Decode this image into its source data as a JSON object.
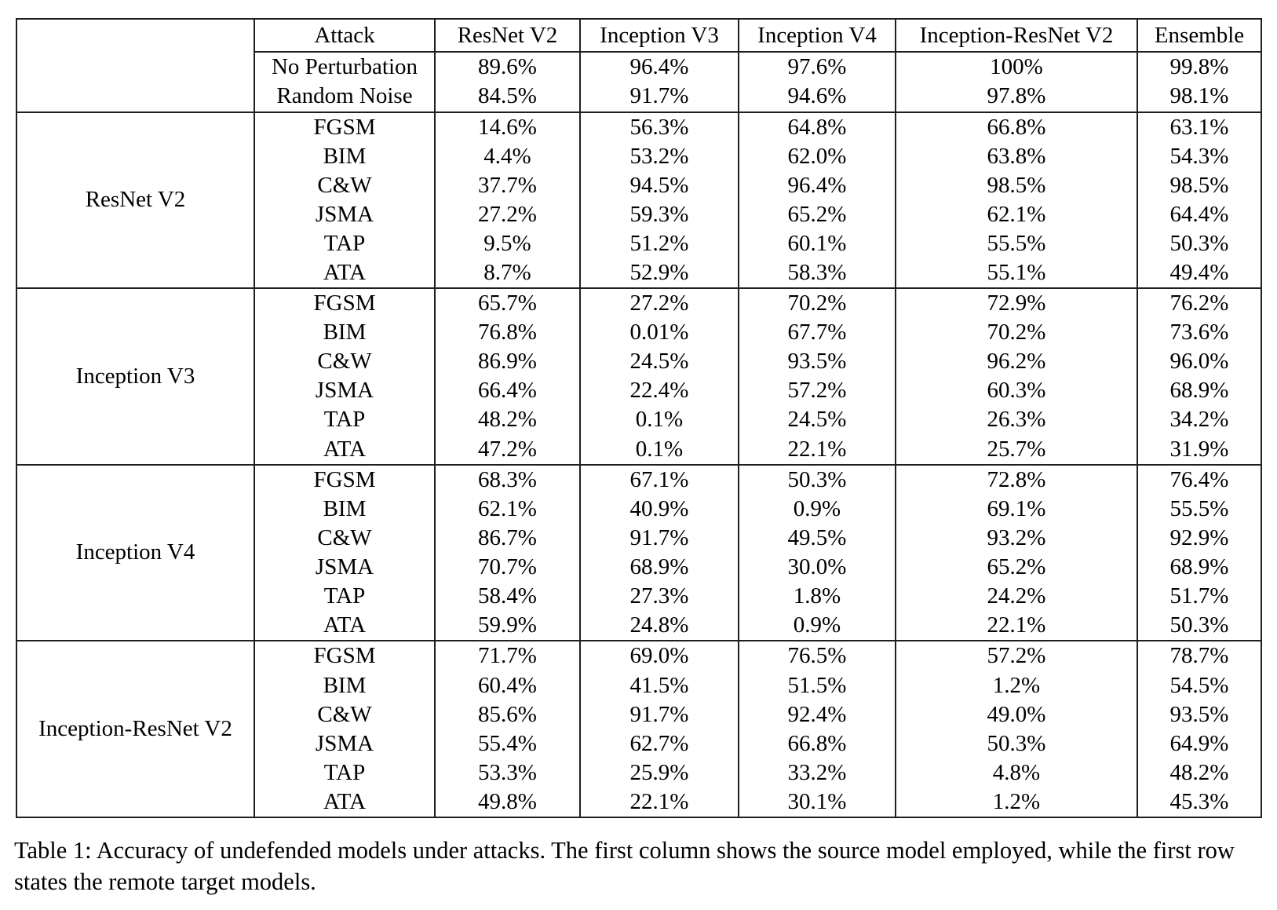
{
  "table": {
    "corner_label": "",
    "attack_col_header": "Attack",
    "target_headers": [
      "ResNet V2",
      "Inception V3",
      "Inception V4",
      "Inception-ResNet V2",
      "Ensemble"
    ],
    "baseline_rows": [
      {
        "label": "No Perturbation",
        "cells": [
          {
            "t": "89.6%",
            "b": false
          },
          {
            "t": "96.4%",
            "b": false
          },
          {
            "t": "97.6%",
            "b": false
          },
          {
            "t": "100%",
            "b": false
          },
          {
            "t": "99.8%",
            "b": false
          }
        ]
      },
      {
        "label": "Random Noise",
        "cells": [
          {
            "t": "84.5%",
            "b": false
          },
          {
            "t": "91.7%",
            "b": false
          },
          {
            "t": "94.6%",
            "b": false
          },
          {
            "t": "97.8%",
            "b": false
          },
          {
            "t": "98.1%",
            "b": false
          }
        ]
      }
    ],
    "sections": [
      {
        "source": "ResNet V2",
        "rows": [
          {
            "attack": "FGSM",
            "cells": [
              {
                "t": "14.6%",
                "b": false
              },
              {
                "t": "56.3%",
                "b": false
              },
              {
                "t": "64.8%",
                "b": false
              },
              {
                "t": "66.8%",
                "b": false
              },
              {
                "t": "63.1%",
                "b": false
              }
            ]
          },
          {
            "attack": "BIM",
            "cells": [
              {
                "t": "4.4%",
                "b": true
              },
              {
                "t": "53.2%",
                "b": false
              },
              {
                "t": "62.0%",
                "b": false
              },
              {
                "t": "63.8%",
                "b": false
              },
              {
                "t": "54.3%",
                "b": false
              }
            ]
          },
          {
            "attack": "C&W",
            "cells": [
              {
                "t": "37.7%",
                "b": false
              },
              {
                "t": "94.5%",
                "b": false
              },
              {
                "t": "96.4%",
                "b": false
              },
              {
                "t": "98.5%",
                "b": false
              },
              {
                "t": "98.5%",
                "b": false
              }
            ]
          },
          {
            "attack": "JSMA",
            "cells": [
              {
                "t": "27.2%",
                "b": false
              },
              {
                "t": "59.3%",
                "b": false
              },
              {
                "t": "65.2%",
                "b": false
              },
              {
                "t": "62.1%",
                "b": false
              },
              {
                "t": "64.4%",
                "b": false
              }
            ]
          },
          {
            "attack": "TAP",
            "cells": [
              {
                "t": "9.5%",
                "b": false
              },
              {
                "t": "51.2%",
                "b": true
              },
              {
                "t": "60.1%",
                "b": false
              },
              {
                "t": "55.5%",
                "b": false
              },
              {
                "t": "50.3%",
                "b": false
              }
            ]
          },
          {
            "attack": "ATA",
            "cells": [
              {
                "t": "8.7%",
                "b": false
              },
              {
                "t": "52.9%",
                "b": false
              },
              {
                "t": "58.3%",
                "b": true
              },
              {
                "t": "55.1%",
                "b": true
              },
              {
                "t": "49.4%",
                "b": true
              }
            ]
          }
        ]
      },
      {
        "source": "Inception V3",
        "rows": [
          {
            "attack": "FGSM",
            "cells": [
              {
                "t": "65.7%",
                "b": false
              },
              {
                "t": "27.2%",
                "b": false
              },
              {
                "t": "70.2%",
                "b": false
              },
              {
                "t": "72.9%",
                "b": false
              },
              {
                "t": "76.2%",
                "b": false
              }
            ]
          },
          {
            "attack": "BIM",
            "cells": [
              {
                "t": "76.8%",
                "b": false
              },
              {
                "t": "0.01%",
                "b": true
              },
              {
                "t": "67.7%",
                "b": false
              },
              {
                "t": "70.2%",
                "b": false
              },
              {
                "t": "73.6%",
                "b": false
              }
            ]
          },
          {
            "attack": "C&W",
            "cells": [
              {
                "t": "86.9%",
                "b": false
              },
              {
                "t": "24.5%",
                "b": false
              },
              {
                "t": "93.5%",
                "b": false
              },
              {
                "t": "96.2%",
                "b": false
              },
              {
                "t": "96.0%",
                "b": false
              }
            ]
          },
          {
            "attack": "JSMA",
            "cells": [
              {
                "t": "66.4%",
                "b": false
              },
              {
                "t": "22.4%",
                "b": false
              },
              {
                "t": "57.2%",
                "b": false
              },
              {
                "t": "60.3%",
                "b": false
              },
              {
                "t": "68.9%",
                "b": false
              }
            ]
          },
          {
            "attack": "TAP",
            "cells": [
              {
                "t": "48.2%",
                "b": false
              },
              {
                "t": "0.1%",
                "b": false
              },
              {
                "t": "24.5%",
                "b": false
              },
              {
                "t": "26.3%",
                "b": false
              },
              {
                "t": "34.2%",
                "b": false
              }
            ]
          },
          {
            "attack": "ATA",
            "cells": [
              {
                "t": "47.2%",
                "b": true
              },
              {
                "t": "0.1%",
                "b": false
              },
              {
                "t": "22.1%",
                "b": true
              },
              {
                "t": "25.7%",
                "b": true
              },
              {
                "t": "31.9%",
                "b": true
              }
            ]
          }
        ]
      },
      {
        "source": "Inception V4",
        "rows": [
          {
            "attack": "FGSM",
            "cells": [
              {
                "t": "68.3%",
                "b": false
              },
              {
                "t": "67.1%",
                "b": false
              },
              {
                "t": "50.3%",
                "b": false
              },
              {
                "t": "72.8%",
                "b": false
              },
              {
                "t": "76.4%",
                "b": false
              }
            ]
          },
          {
            "attack": "BIM",
            "cells": [
              {
                "t": "62.1%",
                "b": false
              },
              {
                "t": "40.9%",
                "b": false
              },
              {
                "t": "0.9%",
                "b": true
              },
              {
                "t": "69.1%",
                "b": false
              },
              {
                "t": "55.5%",
                "b": false
              }
            ]
          },
          {
            "attack": "C&W",
            "cells": [
              {
                "t": "86.7%",
                "b": false
              },
              {
                "t": "91.7%",
                "b": false
              },
              {
                "t": "49.5%",
                "b": false
              },
              {
                "t": "93.2%",
                "b": false
              },
              {
                "t": "92.9%",
                "b": false
              }
            ]
          },
          {
            "attack": "JSMA",
            "cells": [
              {
                "t": "70.7%",
                "b": false
              },
              {
                "t": "68.9%",
                "b": false
              },
              {
                "t": "30.0%",
                "b": false
              },
              {
                "t": "65.2%",
                "b": false
              },
              {
                "t": "68.9%",
                "b": false
              }
            ]
          },
          {
            "attack": "TAP",
            "cells": [
              {
                "t": "58.4%",
                "b": true
              },
              {
                "t": "27.3%",
                "b": false
              },
              {
                "t": "1.8%",
                "b": false
              },
              {
                "t": "24.2%",
                "b": false
              },
              {
                "t": "51.7%",
                "b": false
              }
            ]
          },
          {
            "attack": "ATA",
            "cells": [
              {
                "t": "59.9%",
                "b": false
              },
              {
                "t": "24.8%",
                "b": true
              },
              {
                "t": "0.9%",
                "b": true
              },
              {
                "t": "22.1%",
                "b": true
              },
              {
                "t": "50.3%",
                "b": true
              }
            ]
          }
        ]
      },
      {
        "source": "Inception-ResNet V2",
        "rows": [
          {
            "attack": "FGSM",
            "cells": [
              {
                "t": "71.7%",
                "b": false
              },
              {
                "t": "69.0%",
                "b": false
              },
              {
                "t": "76.5%",
                "b": false
              },
              {
                "t": "57.2%",
                "b": false
              },
              {
                "t": "78.7%",
                "b": false
              }
            ]
          },
          {
            "attack": "BIM",
            "cells": [
              {
                "t": "60.4%",
                "b": false
              },
              {
                "t": "41.5%",
                "b": false
              },
              {
                "t": "51.5%",
                "b": false
              },
              {
                "t": "1.2%",
                "b": true
              },
              {
                "t": "54.5%",
                "b": false
              }
            ]
          },
          {
            "attack": "C&W",
            "cells": [
              {
                "t": "85.6%",
                "b": false
              },
              {
                "t": "91.7%",
                "b": false
              },
              {
                "t": "92.4%",
                "b": false
              },
              {
                "t": "49.0%",
                "b": false
              },
              {
                "t": "93.5%",
                "b": false
              }
            ]
          },
          {
            "attack": "JSMA",
            "cells": [
              {
                "t": "55.4%",
                "b": false
              },
              {
                "t": "62.7%",
                "b": false
              },
              {
                "t": "66.8%",
                "b": false
              },
              {
                "t": "50.3%",
                "b": false
              },
              {
                "t": "64.9%",
                "b": false
              }
            ]
          },
          {
            "attack": "TAP",
            "cells": [
              {
                "t": "53.3%",
                "b": false
              },
              {
                "t": "25.9%",
                "b": false
              },
              {
                "t": "33.2%",
                "b": false
              },
              {
                "t": "4.8%",
                "b": false
              },
              {
                "t": "48.2%",
                "b": false
              }
            ]
          },
          {
            "attack": "ATA",
            "cells": [
              {
                "t": "49.8%",
                "b": true
              },
              {
                "t": "22.1%",
                "b": true
              },
              {
                "t": "30.1%",
                "b": true
              },
              {
                "t": "1.2%",
                "b": true
              },
              {
                "t": "45.3%",
                "b": true
              }
            ]
          }
        ]
      }
    ]
  },
  "caption": {
    "text": "Table 1: Accuracy of undefended models under attacks. The first column shows the source model employed, while the first row states the remote target models."
  }
}
